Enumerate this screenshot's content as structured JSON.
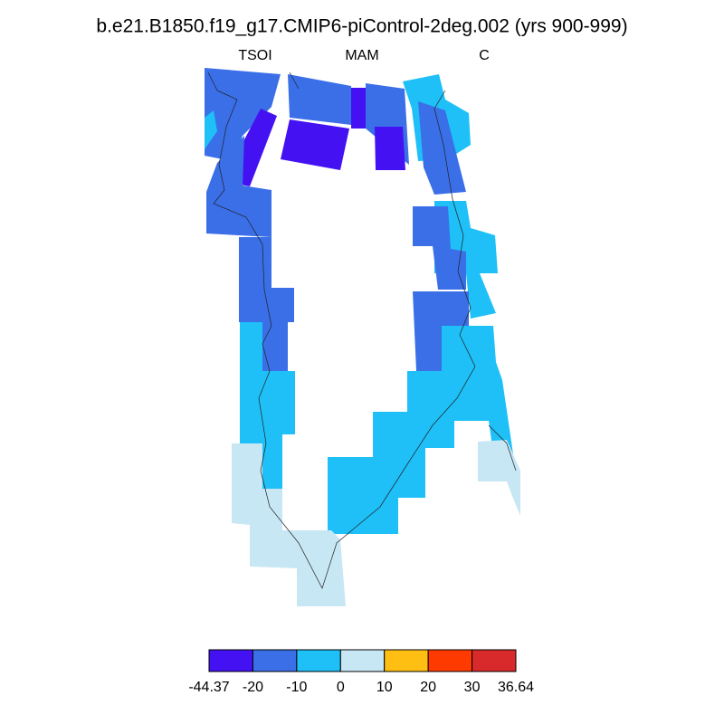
{
  "title": "b.e21.B1850.f19_g17.CMIP6-piControl-2deg.002 (yrs 900-999)",
  "left_string": "TSOI",
  "center_string": "MAM",
  "right_string": "C",
  "colorbar": {
    "colors": [
      "#4412f2",
      "#3a6fe8",
      "#1ec0f7",
      "#c8e7f5",
      "#ffbf12",
      "#ff3a00",
      "#d82a2a"
    ],
    "labels": [
      -44.37,
      -20,
      -10,
      0,
      10,
      20,
      30,
      36.64
    ]
  }
}
